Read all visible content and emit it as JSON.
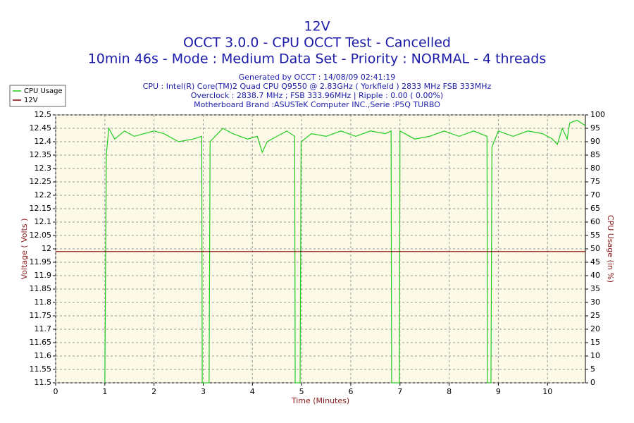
{
  "chart_data": {
    "type": "line",
    "title": "12V",
    "subtitle": [
      "OCCT 3.0.0 - CPU OCCT Test - Cancelled",
      "10min 46s - Mode : Medium Data Set - Priority : NORMAL - 4 threads"
    ],
    "info": [
      "Generated by OCCT : 14/08/09 02:41:19",
      "CPU : Intel(R) Core(TM)2 Quad CPU Q9550 @ 2.83GHz ( Yorkfield ) 2833 MHz FSB 333MHz",
      "Overclock : 2838.7 MHz ; FSB 333.96MHz | Ripple : 0.00 ( 0.00%)",
      "Motherboard Brand :ASUSTeK Computer INC.,Serie :P5Q TURBO"
    ],
    "x_label": "Time (Minutes)",
    "y_label": "Voltage ( Volts )",
    "y2_label": "CPU Usage (in %)",
    "legend": "upper left",
    "grid": true,
    "x": [
      0,
      0.5,
      1.0,
      1.03,
      1.08,
      1.2,
      1.4,
      1.6,
      1.8,
      2.0,
      2.2,
      2.5,
      2.8,
      2.97,
      2.98,
      3.12,
      3.14,
      3.4,
      3.6,
      3.9,
      4.1,
      4.2,
      4.3,
      4.5,
      4.7,
      4.86,
      4.87,
      4.97,
      4.99,
      5.2,
      5.5,
      5.8,
      6.1,
      6.4,
      6.7,
      6.82,
      6.83,
      6.99,
      7.0,
      7.3,
      7.6,
      7.9,
      8.2,
      8.5,
      8.77,
      8.78,
      8.85,
      8.87,
      9.0,
      9.3,
      9.6,
      9.9,
      10.1,
      10.2,
      10.3,
      10.4,
      10.45,
      10.6,
      10.77
    ],
    "series": [
      {
        "name": "CPU Usage",
        "color": "#22cc22",
        "axis": "y2",
        "values": [
          null,
          null,
          0,
          85,
          95,
          91,
          94,
          92,
          93,
          94,
          93,
          90,
          91,
          92,
          0,
          0,
          90,
          95,
          93,
          91,
          92,
          86,
          90,
          92,
          94,
          92,
          0,
          0,
          90,
          93,
          92,
          94,
          92,
          94,
          93,
          94,
          0,
          0,
          94,
          91,
          92,
          94,
          92,
          94,
          92,
          0,
          0,
          88,
          94,
          92,
          94,
          93,
          91,
          89,
          95,
          91,
          97,
          98,
          96
        ]
      },
      {
        "name": "12V",
        "color": "#800000",
        "values": [
          11.99,
          11.99,
          11.99,
          11.99,
          11.99,
          11.99,
          11.99,
          11.99,
          11.99,
          11.99,
          11.99,
          11.99,
          11.99,
          11.99,
          11.99,
          11.99,
          11.99,
          11.99,
          11.99,
          11.99,
          11.99,
          11.99,
          11.99,
          11.99,
          11.99,
          11.99,
          11.99,
          11.99,
          11.99,
          11.99,
          11.99,
          11.99,
          11.99,
          11.99,
          11.99,
          11.99,
          11.99,
          11.99,
          11.99,
          11.99,
          11.99,
          11.99,
          11.99,
          11.99,
          11.99,
          11.99,
          11.99,
          11.99,
          11.99,
          11.99,
          11.99,
          11.99,
          11.99,
          11.99,
          11.99,
          11.99,
          11.99,
          11.99,
          11.99
        ]
      }
    ],
    "xlim": [
      0,
      10.77
    ],
    "xticks": [
      0,
      1,
      2,
      3,
      4,
      5,
      6,
      7,
      8,
      9,
      10
    ],
    "ylim": [
      11.5,
      12.5
    ],
    "yticks": [
      11.5,
      11.55,
      11.6,
      11.65,
      11.7,
      11.75,
      11.8,
      11.85,
      11.9,
      11.95,
      12,
      12.05,
      12.1,
      12.15,
      12.2,
      12.25,
      12.3,
      12.35,
      12.4,
      12.45,
      12.5
    ],
    "y2lim": [
      0,
      100
    ],
    "y2ticks": [
      0,
      5,
      10,
      15,
      20,
      25,
      30,
      35,
      40,
      45,
      50,
      55,
      60,
      65,
      70,
      75,
      80,
      85,
      90,
      95,
      100
    ]
  }
}
